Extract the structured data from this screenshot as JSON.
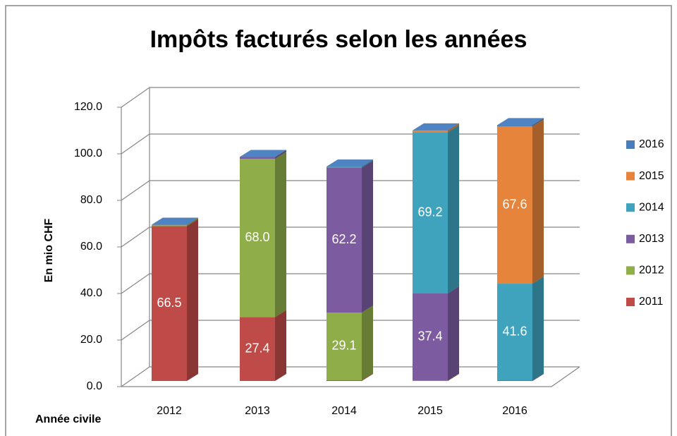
{
  "chart_data": {
    "type": "bar3d_stacked",
    "title": "Impôts facturés selon les années",
    "ylabel": "En mio CHF",
    "xlabel": "Année civile",
    "categories": [
      "2012",
      "2013",
      "2014",
      "2015",
      "2016"
    ],
    "series": [
      {
        "name": "2011",
        "color": "#be4b48",
        "values": [
          66.5,
          27.4,
          0.3,
          0,
          0
        ],
        "value_labels": [
          "66.5",
          "27.4",
          null,
          null,
          null
        ]
      },
      {
        "name": "2012",
        "color": "#8fae4a",
        "values": [
          0.6,
          68.0,
          29.1,
          0.2,
          0
        ],
        "value_labels": [
          null,
          "68.0",
          "29.1",
          null,
          null
        ]
      },
      {
        "name": "2013",
        "color": "#7c5ba1",
        "values": [
          0,
          0.8,
          62.2,
          37.4,
          0.2
        ],
        "value_labels": [
          null,
          null,
          "62.2",
          "37.4",
          null
        ]
      },
      {
        "name": "2014",
        "color": "#3fa3bd",
        "values": [
          0,
          0,
          0.5,
          69.2,
          41.6
        ],
        "value_labels": [
          null,
          null,
          null,
          "69.2",
          "41.6"
        ]
      },
      {
        "name": "2015",
        "color": "#e5843a",
        "values": [
          0,
          0,
          0,
          0.8,
          67.6
        ],
        "value_labels": [
          null,
          null,
          null,
          null,
          "67.6"
        ]
      },
      {
        "name": "2016",
        "color": "#4a7ebb",
        "values": [
          0,
          0,
          0,
          0,
          0.5
        ],
        "value_labels": [
          null,
          null,
          null,
          null,
          null
        ]
      }
    ],
    "ylim": [
      0,
      120
    ],
    "yticks": [
      {
        "value": 0,
        "label": "0.0"
      },
      {
        "value": 20,
        "label": "20.0"
      },
      {
        "value": 40,
        "label": "40.0"
      },
      {
        "value": 60,
        "label": "60.0"
      },
      {
        "value": 80,
        "label": "80.0"
      },
      {
        "value": 100,
        "label": "100.0"
      },
      {
        "value": 120,
        "label": "120.0"
      }
    ],
    "grid": true,
    "legend": "right"
  }
}
